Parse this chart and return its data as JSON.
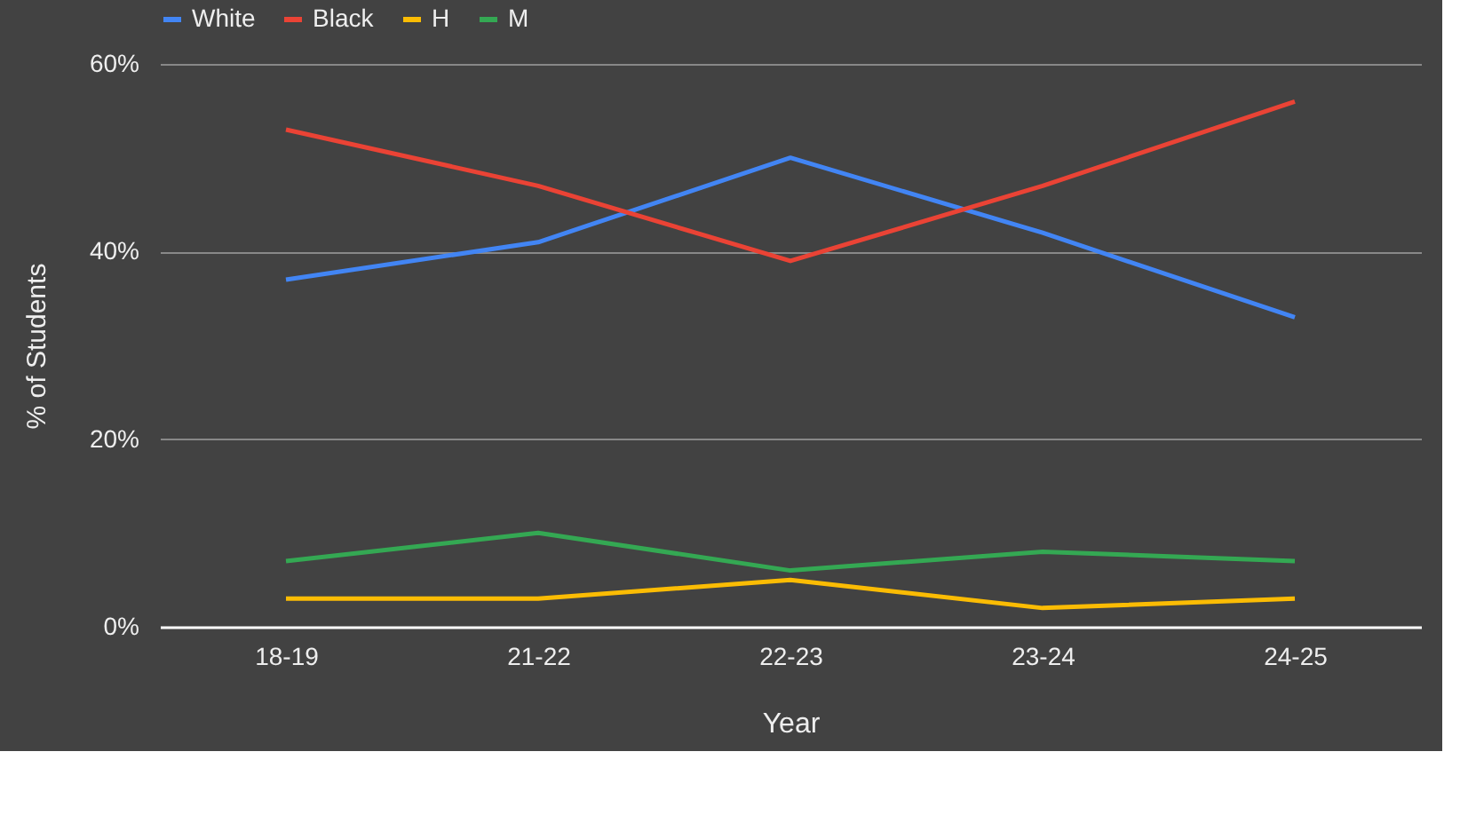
{
  "chart_data": {
    "type": "line",
    "xlabel": "Year",
    "ylabel": "% of Students",
    "categories": [
      "18-19",
      "21-22",
      "22-23",
      "23-24",
      "24-25"
    ],
    "series": [
      {
        "name": "White",
        "color": "#4285f4",
        "values": [
          37,
          41,
          50,
          42,
          33
        ]
      },
      {
        "name": "Black",
        "color": "#ea4335",
        "values": [
          53,
          47,
          39,
          47,
          56
        ]
      },
      {
        "name": "H",
        "color": "#fbbc04",
        "values": [
          3,
          3,
          5,
          2,
          3
        ]
      },
      {
        "name": "M",
        "color": "#34a853",
        "values": [
          7,
          10,
          6,
          8,
          7
        ]
      }
    ],
    "ylim": [
      0,
      60
    ],
    "yticks": [
      {
        "value": 0,
        "label": "0%"
      },
      {
        "value": 20,
        "label": "20%"
      },
      {
        "value": 40,
        "label": "40%"
      },
      {
        "value": 60,
        "label": "60%"
      }
    ],
    "grid": "y",
    "legend": "top",
    "marker": "none",
    "line_style": "solid"
  }
}
